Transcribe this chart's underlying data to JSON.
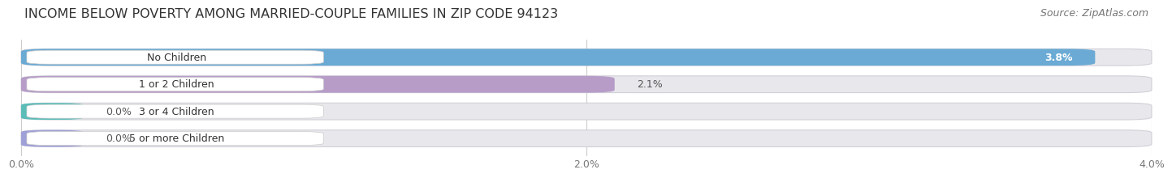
{
  "title": "INCOME BELOW POVERTY AMONG MARRIED-COUPLE FAMILIES IN ZIP CODE 94123",
  "source": "Source: ZipAtlas.com",
  "categories": [
    "No Children",
    "1 or 2 Children",
    "3 or 4 Children",
    "5 or more Children"
  ],
  "values": [
    3.8,
    2.1,
    0.0,
    0.0
  ],
  "bar_colors": [
    "#6aaad4",
    "#b79cc8",
    "#5bbcb8",
    "#a0a0d8"
  ],
  "xlim": [
    0,
    4.0
  ],
  "xticks": [
    0.0,
    2.0,
    4.0
  ],
  "xtick_labels": [
    "0.0%",
    "2.0%",
    "4.0%"
  ],
  "fig_bg_color": "#ffffff",
  "bar_bg_color": "#e8e8ec",
  "title_fontsize": 11.5,
  "source_fontsize": 9,
  "label_fontsize": 9,
  "value_fontsize": 9,
  "tick_fontsize": 9,
  "bar_height": 0.62,
  "value_label_color": "white",
  "value_outside_color": "#555555"
}
